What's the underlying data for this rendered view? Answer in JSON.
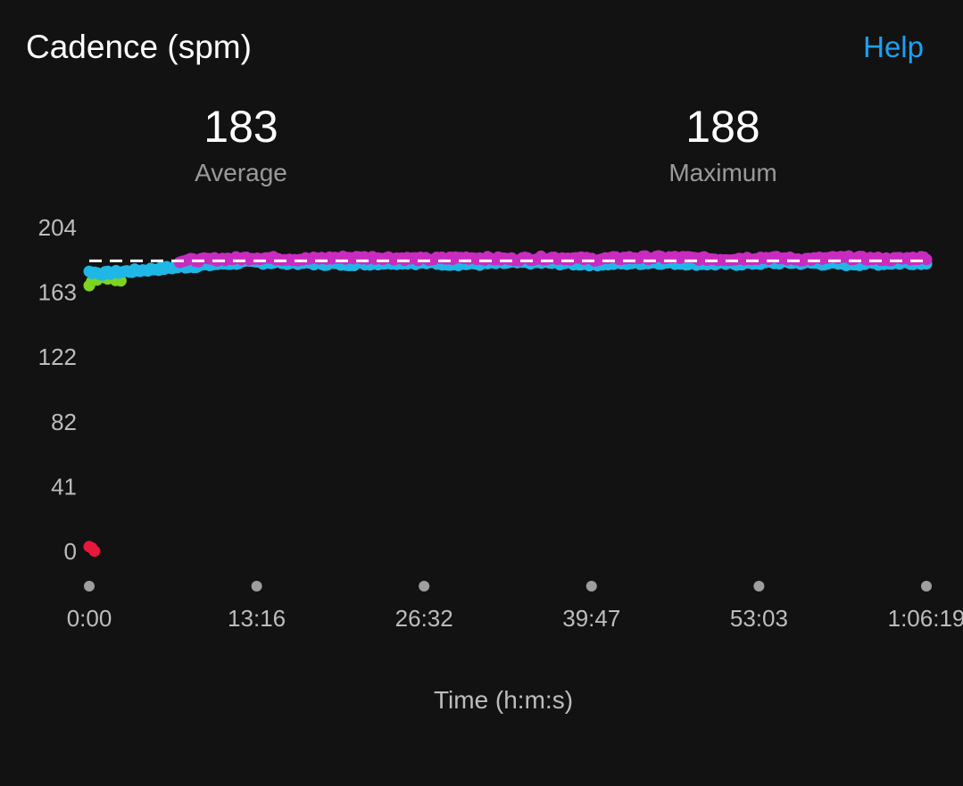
{
  "header": {
    "title": "Cadence (spm)",
    "help_label": "Help"
  },
  "stats": {
    "average": {
      "value": "183",
      "label": "Average"
    },
    "maximum": {
      "value": "188",
      "label": "Maximum"
    }
  },
  "colors": {
    "background": "#121212",
    "help": "#1ba1f2",
    "zone_red": "#e8173c",
    "zone_green": "#7ed321",
    "zone_blue": "#1fb7e6",
    "zone_purple": "#c92bbf",
    "average_line": "#ffffff",
    "tick_text": "#bdbdbd"
  },
  "chart_data": {
    "type": "scatter",
    "title": "Cadence (spm)",
    "xlabel": "Time (h:m:s)",
    "ylabel": "",
    "x_ticks": [
      "0:00",
      "13:16",
      "26:32",
      "39:47",
      "53:03",
      "1:06:19"
    ],
    "y_ticks": [
      "204",
      "163",
      "122",
      "82",
      "41",
      "0"
    ],
    "xlim": [
      0,
      3979
    ],
    "ylim": [
      0,
      204
    ],
    "average_line": 183,
    "grid": false,
    "series": [
      {
        "color": "#e8173c",
        "x": [
          0,
          25
        ],
        "y": [
          3,
          1
        ]
      },
      {
        "color": "#7ed321",
        "x": [
          0,
          10,
          20,
          40,
          60,
          90,
          110,
          150
        ],
        "y": [
          168,
          170,
          171,
          172,
          173,
          172,
          172,
          171
        ]
      },
      {
        "color": "#1fb7e6",
        "x": [
          0,
          60,
          150,
          240,
          330,
          420,
          520,
          620,
          720,
          900,
          1200,
          1500,
          1800,
          2100,
          2400,
          2700,
          3000,
          3300,
          3600,
          3979
        ],
        "y": [
          176,
          175,
          176,
          177,
          178,
          179,
          180,
          181,
          182,
          182,
          181,
          182,
          181,
          182,
          181,
          182,
          181,
          182,
          181,
          182
        ]
      },
      {
        "color": "#c92bbf",
        "x": [
          430,
          600,
          800,
          1000,
          1200,
          1400,
          1600,
          1800,
          2000,
          2200,
          2400,
          2600,
          2800,
          3000,
          3200,
          3400,
          3600,
          3800,
          3979
        ],
        "y": [
          183,
          184,
          185,
          184,
          185,
          185,
          184,
          185,
          184,
          185,
          184,
          185,
          185,
          184,
          185,
          184,
          185,
          184,
          185
        ]
      }
    ]
  }
}
